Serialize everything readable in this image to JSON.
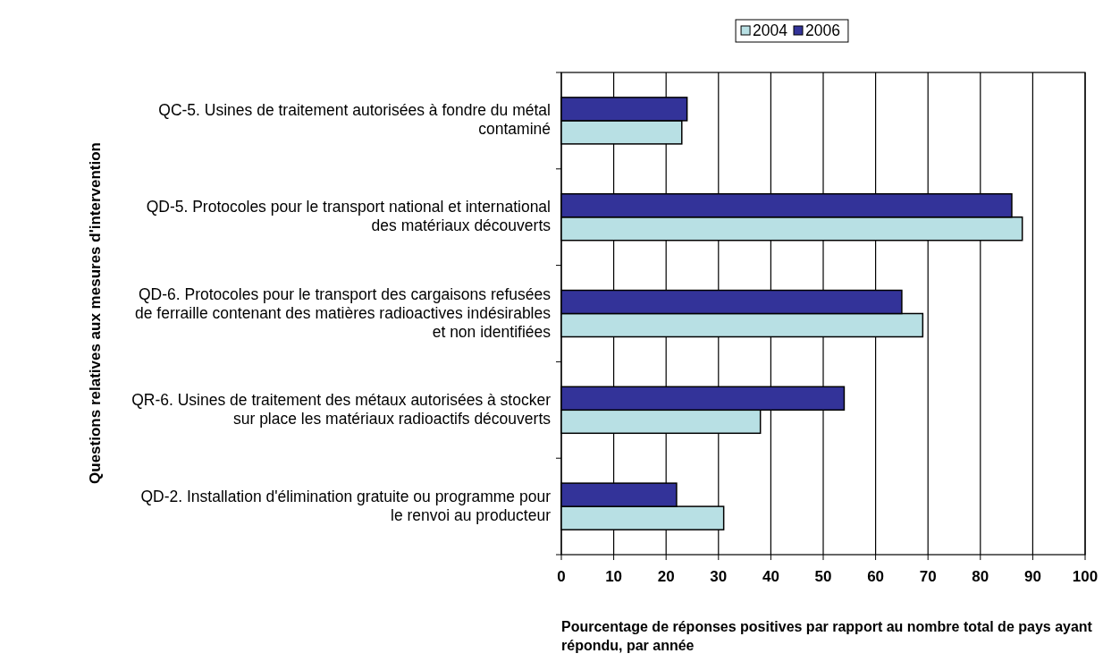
{
  "chart_data": {
    "type": "bar",
    "orientation": "horizontal",
    "xlabel": "Pourcentage de réponses positives par rapport au nombre total de pays ayant répondu, par année",
    "ylabel": "Questions relatives aux mesures d'intervention",
    "categories": [
      "QC-5. Usines de traitement autorisées à fondre du métal contaminé",
      "QD-5. Protocoles pour le transport national et international des matériaux découverts",
      "QD-6. Protocoles pour le transport des cargaisons refusées de ferraille contenant des matières radioactives indésirables et non identifiées",
      "QR-6. Usines de traitement des métaux autorisées à stocker sur place les matériaux radioactifs découverts",
      "QD-2. Installation d'élimination gratuite ou programme pour le renvoi au producteur"
    ],
    "series": [
      {
        "name": "2004",
        "color": "#b8e0e4",
        "values": [
          23,
          88,
          69,
          38,
          31
        ]
      },
      {
        "name": "2006",
        "color": "#333399",
        "values": [
          24,
          86,
          65,
          54,
          22
        ]
      }
    ],
    "xlim": [
      0,
      100
    ],
    "xticks": [
      0,
      10,
      20,
      30,
      40,
      50,
      60,
      70,
      80,
      90,
      100
    ],
    "grid": "x",
    "legend": "top"
  }
}
